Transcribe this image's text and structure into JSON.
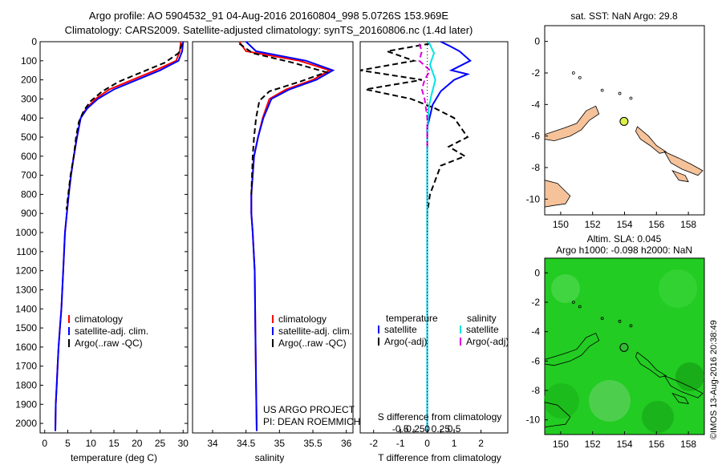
{
  "figure": {
    "title_line1": "Argo profile: AO 5904532_91 04-Aug-2016 20160804_998 5.0726S 153.969E",
    "title_line2": "Climatology: CARS2009. Satellite-adjusted climatology: synTS_20160806.nc (1.4d later)",
    "side_stamp": "©IMOS 13-Aug-2016 20:38:49",
    "project_line1": "US ARGO PROJECT",
    "project_line2": "PI: DEAN ROEMMICH"
  },
  "colors": {
    "climatology": "#ff0000",
    "satellite": "#0000ff",
    "argo": "#000000",
    "sat_salinity": "#00e5e5",
    "argo_salinity": "#e000e0",
    "land": "#f5c29a",
    "sla_background": "#22cc22"
  },
  "chart_data": [
    {
      "id": "temperature",
      "type": "line",
      "xlabel": "temperature (deg C)",
      "ylabel": "",
      "xlim": [
        -1,
        31
      ],
      "ylim": [
        2050,
        0
      ],
      "xticks": [
        0,
        5,
        10,
        15,
        20,
        25,
        30
      ],
      "yticks": [
        0,
        100,
        200,
        300,
        400,
        500,
        600,
        700,
        800,
        900,
        1000,
        1100,
        1200,
        1300,
        1400,
        1500,
        1600,
        1700,
        1800,
        1900,
        2000
      ],
      "legend": [
        "climatology",
        "satellite-adj. clim.",
        "Argo(..raw -QC)"
      ],
      "legend_position": "lower-right",
      "series": [
        {
          "name": "climatology",
          "color": "#ff0000",
          "dash": "solid",
          "x": [
            29.5,
            29.3,
            28.5,
            24,
            19,
            14,
            11,
            9,
            7.8,
            7,
            6.3,
            5.7,
            5.2,
            4.8,
            4.4,
            4,
            3.6,
            3.3,
            3,
            2.8,
            2.6,
            2.4,
            2.3
          ],
          "y": [
            0,
            50,
            100,
            150,
            200,
            250,
            300,
            350,
            400,
            500,
            600,
            700,
            800,
            900,
            1000,
            1200,
            1400,
            1500,
            1600,
            1700,
            1800,
            1900,
            2040
          ]
        },
        {
          "name": "satellite-adj. clim.",
          "color": "#0000ff",
          "dash": "solid",
          "x": [
            30,
            29.8,
            29,
            25,
            20,
            15,
            11.5,
            9.2,
            7.8,
            7,
            6.3,
            5.7,
            5.2,
            4.8,
            4.4,
            4,
            3.6,
            3.3,
            3,
            2.8,
            2.6,
            2.4,
            2.3
          ],
          "y": [
            0,
            50,
            100,
            150,
            200,
            250,
            300,
            350,
            400,
            500,
            600,
            700,
            800,
            900,
            1000,
            1200,
            1400,
            1500,
            1600,
            1700,
            1800,
            1900,
            2040
          ]
        },
        {
          "name": "Argo(..raw -QC)",
          "color": "#000000",
          "dash": "dashed",
          "x": [
            29.8,
            29,
            26,
            21,
            16,
            12.5,
            10,
            8.5,
            7.4,
            6.8,
            6.3,
            5.6,
            5.1,
            4.7
          ],
          "y": [
            10,
            60,
            110,
            160,
            210,
            260,
            310,
            360,
            420,
            500,
            600,
            700,
            800,
            880
          ]
        }
      ]
    },
    {
      "id": "salinity",
      "type": "line",
      "xlabel": "salinity",
      "ylabel": "",
      "xlim": [
        33.7,
        36.1
      ],
      "ylim": [
        2050,
        0
      ],
      "xticks": [
        34,
        34.5,
        35,
        35.5,
        36
      ],
      "xtick_labels": [
        "34",
        "34.5",
        "35",
        "35.5",
        "36"
      ],
      "legend": [
        "climatology",
        "satellite-adj. clim.",
        "Argo(..raw -QC)"
      ],
      "legend_position": "lower-right",
      "series": [
        {
          "name": "climatology",
          "color": "#ff0000",
          "dash": "solid",
          "x": [
            34.4,
            34.5,
            35.3,
            35.75,
            35.5,
            35.1,
            34.85,
            34.75,
            34.68,
            34.62,
            34.6,
            34.58,
            34.58,
            34.6,
            34.63,
            34.64,
            34.65,
            34.66
          ],
          "y": [
            0,
            50,
            100,
            150,
            200,
            250,
            300,
            400,
            500,
            600,
            700,
            800,
            900,
            1000,
            1200,
            1500,
            1800,
            2040
          ]
        },
        {
          "name": "satellite-adj. clim.",
          "color": "#0000ff",
          "dash": "solid",
          "x": [
            34.5,
            34.65,
            35.4,
            35.8,
            35.55,
            35.15,
            34.88,
            34.76,
            34.68,
            34.62,
            34.6,
            34.58,
            34.58,
            34.6,
            34.63,
            34.64,
            34.65,
            34.66
          ],
          "y": [
            0,
            50,
            100,
            150,
            200,
            250,
            300,
            400,
            500,
            600,
            700,
            800,
            900,
            1000,
            1200,
            1500,
            1800,
            2040
          ]
        },
        {
          "name": "Argo(..raw -QC)",
          "color": "#000000",
          "dash": "dashed",
          "x": [
            34.4,
            34.6,
            35.2,
            35.7,
            35.3,
            34.85,
            34.7,
            34.65,
            34.62,
            34.6,
            34.58
          ],
          "y": [
            10,
            60,
            110,
            160,
            210,
            260,
            310,
            400,
            500,
            600,
            800
          ]
        }
      ]
    },
    {
      "id": "difference",
      "type": "line",
      "xlabel_bottom": "T difference from climatology",
      "xlabel_top": "S difference from climatology",
      "xlim": [
        -2.5,
        3
      ],
      "ylim": [
        2050,
        0
      ],
      "xticks": [
        -2,
        -1,
        0,
        1,
        2
      ],
      "top_ticks": [
        -0.5,
        -0.25,
        0,
        0.25,
        0.5
      ],
      "top_tick_labels": [
        "-0.5",
        "-0.25",
        "0",
        "0.25",
        "0.5"
      ],
      "legend": [
        "temperature",
        "salinity",
        "satellite",
        "Argo(-adj)"
      ],
      "legend_position": "lower-center",
      "series": [
        {
          "name": "temperature satellite",
          "color": "#0000ff",
          "dash": "solid",
          "x": [
            0.5,
            0.8,
            1.2,
            1.6,
            0.9,
            1.5,
            1.0,
            0.5,
            0.2,
            0,
            0,
            0,
            0,
            0
          ],
          "y": [
            0,
            20,
            50,
            100,
            150,
            170,
            200,
            260,
            330,
            450,
            600,
            900,
            1400,
            2040
          ]
        },
        {
          "name": "temperature Argo(-adj)",
          "color": "#000000",
          "dash": "dashed",
          "x": [
            0.1,
            -1.5,
            -0.5,
            -2.5,
            -0.2,
            -2.3,
            -0.6,
            0.3,
            1.0,
            1.5,
            0.8,
            1.4,
            0.5,
            0.1,
            0,
            0
          ],
          "y": [
            10,
            50,
            100,
            150,
            200,
            250,
            300,
            350,
            400,
            500,
            550,
            600,
            650,
            800,
            900,
            1000
          ]
        },
        {
          "name": "salinity satellite",
          "color": "#00e5e5",
          "dash": "solid",
          "x": [
            0.05,
            0.25,
            0.1,
            0.3,
            0.15,
            0.05,
            0,
            0,
            0
          ],
          "y": [
            0,
            60,
            120,
            200,
            280,
            350,
            500,
            1000,
            2040
          ]
        },
        {
          "name": "salinity Argo(-adj)",
          "color": "#e000e0",
          "dash": "dashed",
          "x": [
            -0.3,
            -0.2,
            -0.3,
            0.1,
            -0.1,
            -0.2,
            -0.1,
            0,
            0
          ],
          "y": [
            10,
            50,
            100,
            150,
            200,
            250,
            300,
            400,
            550
          ]
        }
      ]
    },
    {
      "id": "sst_map",
      "type": "map",
      "title": "sat. SST: NaN Argo: 29.8",
      "xlim": [
        149,
        159
      ],
      "ylim": [
        -11,
        1
      ],
      "xticks": [
        150,
        152,
        154,
        156,
        158
      ],
      "yticks": [
        0,
        -2,
        -4,
        -6,
        -8,
        -10
      ],
      "marker": {
        "lon": 153.969,
        "lat": -5.0726,
        "color": "#ddf04a"
      }
    },
    {
      "id": "sla_map",
      "type": "map",
      "title_line1": "Altim. SLA: 0.045",
      "title_line2": "Argo h1000: -0.098 h2000: NaN",
      "xlim": [
        149,
        159
      ],
      "ylim": [
        -11,
        1
      ],
      "xticks": [
        150,
        152,
        154,
        156,
        158
      ],
      "yticks": [
        0,
        -2,
        -4,
        -6,
        -8,
        -10
      ],
      "marker": {
        "lon": 153.969,
        "lat": -5.0726,
        "color": "#33bb33"
      }
    }
  ]
}
